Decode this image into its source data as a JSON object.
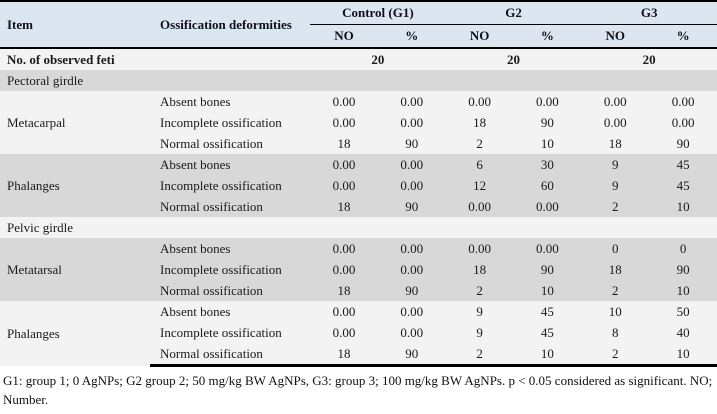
{
  "colors": {
    "header_bg": "#dce6f1",
    "band_gray": "#d8d8d8",
    "band_light": "#f3f3f3",
    "rule": "#000000"
  },
  "header": {
    "item": "Item",
    "deformities": "Ossification deformities",
    "groups": [
      "Control (G1)",
      "G2",
      "G3"
    ],
    "sub": [
      "NO",
      "%"
    ]
  },
  "observed": {
    "label": "No. of observed feti",
    "values": [
      "20",
      "20",
      "20"
    ]
  },
  "sections": [
    {
      "label": "Pectoral girdle"
    },
    {
      "label": "Pelvic girdle"
    }
  ],
  "groups": [
    {
      "item": "Metacarpal",
      "rows": [
        {
          "deformity": "Absent bones",
          "values": [
            "0.00",
            "0.00",
            "0.00",
            "0.00",
            "0.00",
            "0.00"
          ]
        },
        {
          "deformity": "Incomplete ossification",
          "values": [
            "0.00",
            "0.00",
            "18",
            "90",
            "0.00",
            "0.00"
          ]
        },
        {
          "deformity": "Normal ossification",
          "values": [
            "18",
            "90",
            "2",
            "10",
            "18",
            "90"
          ]
        }
      ]
    },
    {
      "item": "Phalanges",
      "rows": [
        {
          "deformity": "Absent bones",
          "values": [
            "0.00",
            "0.00",
            "6",
            "30",
            "9",
            "45"
          ]
        },
        {
          "deformity": "Incomplete ossification",
          "values": [
            "0.00",
            "0.00",
            "12",
            "60",
            "9",
            "45"
          ]
        },
        {
          "deformity": "Normal ossification",
          "values": [
            "18",
            "90",
            "0.00",
            "0.00",
            "2",
            "10"
          ]
        }
      ]
    },
    {
      "item": "Metatarsal",
      "rows": [
        {
          "deformity": "Absent bones",
          "values": [
            "0.00",
            "0.00",
            "0.00",
            "0.00",
            "0",
            "0"
          ]
        },
        {
          "deformity": "Incomplete ossification",
          "values": [
            "0.00",
            "0.00",
            "18",
            "90",
            "18",
            "90"
          ]
        },
        {
          "deformity": "Normal ossification",
          "values": [
            "18",
            "90",
            "2",
            "10",
            "2",
            "10"
          ]
        }
      ]
    },
    {
      "item": "Phalanges",
      "rows": [
        {
          "deformity": "Absent bones",
          "values": [
            "0.00",
            "0.00",
            "9",
            "45",
            "10",
            "50"
          ]
        },
        {
          "deformity": "Incomplete ossification",
          "values": [
            "0.00",
            "0.00",
            "9",
            "45",
            "8",
            "40"
          ]
        },
        {
          "deformity": "Normal ossification",
          "values": [
            "18",
            "90",
            "2",
            "10",
            "2",
            "10"
          ]
        }
      ]
    }
  ],
  "footnote": "G1: group 1; 0 AgNPs; G2 group 2; 50 mg/kg BW AgNPs, G3: group 3; 100 mg/kg BW AgNPs. p < 0.05 considered as significant. NO; Number."
}
